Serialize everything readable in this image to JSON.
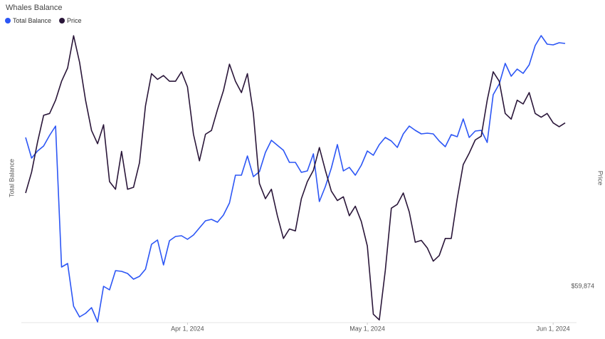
{
  "chart_data": {
    "type": "line",
    "title": "Whales Balance",
    "ylabel": "Total Balance",
    "y2label": "Price",
    "legend": "top-left",
    "x": [
      "2024-03-05",
      "2024-03-06",
      "2024-03-07",
      "2024-03-08",
      "2024-03-09",
      "2024-03-10",
      "2024-03-11",
      "2024-03-12",
      "2024-03-13",
      "2024-03-14",
      "2024-03-15",
      "2024-03-16",
      "2024-03-17",
      "2024-03-18",
      "2024-03-19",
      "2024-03-20",
      "2024-03-21",
      "2024-03-22",
      "2024-03-23",
      "2024-03-24",
      "2024-03-25",
      "2024-03-26",
      "2024-03-27",
      "2024-03-28",
      "2024-03-29",
      "2024-03-30",
      "2024-03-31",
      "2024-04-01",
      "2024-04-02",
      "2024-04-03",
      "2024-04-04",
      "2024-04-05",
      "2024-04-06",
      "2024-04-07",
      "2024-04-08",
      "2024-04-09",
      "2024-04-10",
      "2024-04-11",
      "2024-04-12",
      "2024-04-13",
      "2024-04-14",
      "2024-04-15",
      "2024-04-16",
      "2024-04-17",
      "2024-04-18",
      "2024-04-19",
      "2024-04-20",
      "2024-04-21",
      "2024-04-22",
      "2024-04-23",
      "2024-04-24",
      "2024-04-25",
      "2024-04-26",
      "2024-04-27",
      "2024-04-28",
      "2024-04-29",
      "2024-04-30",
      "2024-05-01",
      "2024-05-02",
      "2024-05-03",
      "2024-05-04",
      "2024-05-05",
      "2024-05-06",
      "2024-05-07",
      "2024-05-08",
      "2024-05-09",
      "2024-05-10",
      "2024-05-11",
      "2024-05-12",
      "2024-05-13",
      "2024-05-14",
      "2024-05-15",
      "2024-05-16",
      "2024-05-17",
      "2024-05-18",
      "2024-05-19",
      "2024-05-20",
      "2024-05-21",
      "2024-05-22",
      "2024-05-23",
      "2024-05-24",
      "2024-05-25",
      "2024-05-26",
      "2024-05-27",
      "2024-05-28",
      "2024-05-29",
      "2024-05-30",
      "2024-05-31",
      "2024-06-01",
      "2024-06-02",
      "2024-06-03"
    ],
    "xlim": [
      "2024-03-05",
      "2024-06-03"
    ],
    "xticks": [
      {
        "value": "2024-04-01",
        "label": "Apr 1, 2024"
      },
      {
        "value": "2024-05-01",
        "label": "May 1, 2024"
      },
      {
        "value": "2024-06-01",
        "label": "Jun 1, 2024"
      }
    ],
    "ylim": [
      0,
      435
    ],
    "y2lim": [
      57881,
      74237
    ],
    "y2ticks": [
      {
        "value": 59874,
        "label": "$59,874"
      }
    ],
    "series": [
      {
        "name": "Total Balance",
        "color": "#2c56f5",
        "values": [
          262,
          233,
          243,
          250,
          265,
          278,
          80,
          85,
          25,
          10,
          15,
          23,
          3,
          53,
          48,
          75,
          74,
          71,
          63,
          67,
          77,
          112,
          118,
          83,
          117,
          123,
          124,
          119,
          125,
          135,
          145,
          147,
          143,
          153,
          170,
          209,
          209,
          236,
          207,
          214,
          241,
          258,
          251,
          244,
          227,
          227,
          213,
          215,
          239,
          172,
          193,
          219,
          252,
          215,
          220,
          209,
          223,
          243,
          237,
          252,
          262,
          257,
          248,
          267,
          278,
          272,
          267,
          268,
          267,
          257,
          249,
          266,
          263,
          288,
          262,
          271,
          272,
          255,
          322,
          337,
          366,
          348,
          358,
          352,
          364,
          391,
          405,
          393,
          392,
          395,
          394
        ]
      },
      {
        "name": "Price",
        "color": "#2a1639",
        "axis": "y2",
        "values": [
          64800,
          65900,
          67500,
          68900,
          69000,
          69700,
          70700,
          71400,
          73100,
          71700,
          69700,
          68100,
          67400,
          68400,
          65400,
          65000,
          67000,
          65000,
          65100,
          66400,
          69400,
          71100,
          70800,
          71000,
          70700,
          70700,
          71200,
          70400,
          67900,
          66500,
          67900,
          68100,
          69200,
          70200,
          71600,
          70700,
          70100,
          71100,
          69000,
          65300,
          64500,
          65000,
          63600,
          62400,
          62900,
          62800,
          64500,
          65400,
          66000,
          67200,
          66000,
          64900,
          64400,
          64600,
          63600,
          64100,
          63300,
          62000,
          58400,
          58100,
          60700,
          64000,
          64200,
          64800,
          63800,
          62200,
          62300,
          61900,
          61200,
          61500,
          62400,
          62400,
          64500,
          66300,
          66900,
          67600,
          67800,
          69700,
          71200,
          70700,
          69000,
          68700,
          69700,
          69500,
          70100,
          69000,
          68800,
          69000,
          68500,
          68300,
          68500
        ]
      }
    ]
  }
}
